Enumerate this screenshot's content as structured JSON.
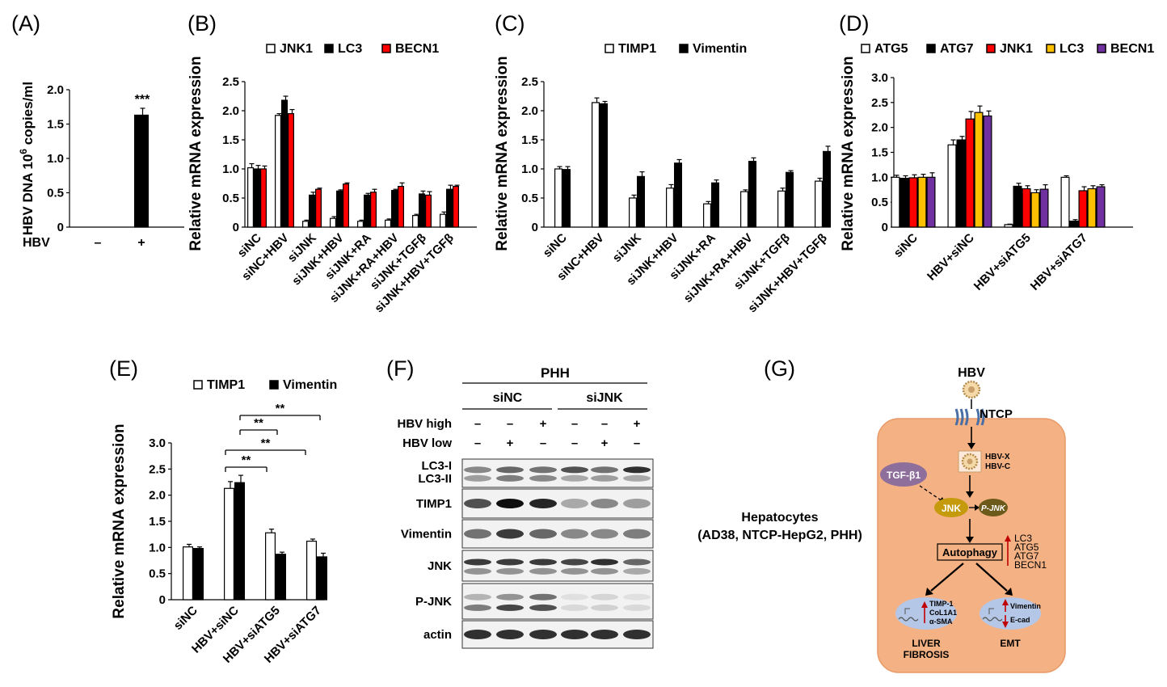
{
  "panel_labels": [
    "(A)",
    "(B)",
    "(C)",
    "(D)",
    "(E)",
    "(F)",
    "(G)"
  ],
  "colors": {
    "white": "#ffffff",
    "black": "#000000",
    "red": "#ff0000",
    "yellow": "#ffc000",
    "purple": "#7030a0",
    "cell": "#f4b183",
    "cell_border": "#e89a68",
    "tgf": "#8e6f9b",
    "jnk": "#c59a0c",
    "pjnk": "#6b5a1a",
    "nucleus": "#b4c7e7"
  },
  "chart_data": [
    {
      "id": "A",
      "type": "bar",
      "title": "",
      "ylabel": "HBV DNA 10^6 copies/ml",
      "ylim": [
        0,
        2.0
      ],
      "yticks": [
        "0",
        "0.5",
        "1.0",
        "1.5",
        "2.0"
      ],
      "row_label": "HBV",
      "categories": [
        "–",
        "+"
      ],
      "series": [
        {
          "name": "HBV DNA",
          "color": "black",
          "values": [
            0,
            1.63
          ],
          "errors": [
            0,
            0.1
          ]
        }
      ],
      "annotations": [
        "***"
      ]
    },
    {
      "id": "B",
      "type": "bar",
      "ylabel": "Relative mRNA expression",
      "ylim": [
        0,
        2.5
      ],
      "yticks": [
        "0",
        "0.5",
        "1.0",
        "1.5",
        "2.0",
        "2.5"
      ],
      "categories": [
        "siNC",
        "siNC+HBV",
        "siJNK",
        "siJNK+HBV",
        "siJNK+RA",
        "siJNK+RA+HBV",
        "siJNK+TGFβ",
        "siJNK+HBV+TGFβ"
      ],
      "series": [
        {
          "name": "JNK1",
          "color": "white",
          "values": [
            1.02,
            1.92,
            0.1,
            0.15,
            0.1,
            0.12,
            0.2,
            0.22
          ],
          "errors": [
            0.07,
            0.03,
            0.02,
            0.03,
            0.02,
            0.02,
            0.02,
            0.04
          ]
        },
        {
          "name": "LC3",
          "color": "black",
          "values": [
            1.0,
            2.18,
            0.55,
            0.62,
            0.55,
            0.63,
            0.57,
            0.65
          ],
          "errors": [
            0.06,
            0.07,
            0.05,
            0.02,
            0.03,
            0.02,
            0.05,
            0.07
          ]
        },
        {
          "name": "BECN1",
          "color": "red",
          "values": [
            1.0,
            1.95,
            0.65,
            0.74,
            0.6,
            0.7,
            0.55,
            0.7
          ],
          "errors": [
            0.05,
            0.07,
            0.02,
            0.02,
            0.05,
            0.06,
            0.06,
            0.02
          ]
        }
      ]
    },
    {
      "id": "C",
      "type": "bar",
      "ylabel": "Relative mRNA expression",
      "ylim": [
        0,
        2.5
      ],
      "yticks": [
        "0",
        "0.5",
        "1.0",
        "1.5",
        "2.0",
        "2.5"
      ],
      "categories": [
        "siNC",
        "siNC+HBV",
        "siJNK",
        "siJNK+HBV",
        "siJNK+RA",
        "siJNK+RA+HBV",
        "siJNK+TGFβ",
        "siJNK+HBV+TGFβ"
      ],
      "series": [
        {
          "name": "TIMP1",
          "color": "white",
          "values": [
            1.0,
            2.14,
            0.5,
            0.67,
            0.4,
            0.61,
            0.62,
            0.79
          ],
          "errors": [
            0.04,
            0.08,
            0.05,
            0.06,
            0.04,
            0.03,
            0.05,
            0.05
          ]
        },
        {
          "name": "Vimentin",
          "color": "black",
          "values": [
            0.99,
            2.12,
            0.87,
            1.1,
            0.76,
            1.13,
            0.94,
            1.3
          ],
          "errors": [
            0.05,
            0.04,
            0.08,
            0.06,
            0.05,
            0.06,
            0.03,
            0.09
          ]
        }
      ]
    },
    {
      "id": "D",
      "type": "bar",
      "ylabel": "Relative mRNA expression",
      "ylim": [
        0,
        3.0
      ],
      "yticks": [
        "0",
        "0.5",
        "1.0",
        "1.5",
        "2.0",
        "2.5",
        "3.0"
      ],
      "categories": [
        "siNC",
        "HBV+siNC",
        "HBV+siATG5",
        "HBV+siATG7"
      ],
      "series": [
        {
          "name": "ATG5",
          "color": "white",
          "values": [
            1.0,
            1.65,
            0.05,
            1.0
          ],
          "errors": [
            0.04,
            0.1,
            0.01,
            0.03
          ]
        },
        {
          "name": "ATG7",
          "color": "black",
          "values": [
            0.98,
            1.75,
            0.82,
            0.12
          ],
          "errors": [
            0.05,
            0.07,
            0.06,
            0.03
          ]
        },
        {
          "name": "JNK1",
          "color": "red",
          "values": [
            0.99,
            2.17,
            0.77,
            0.73
          ],
          "errors": [
            0.06,
            0.15,
            0.06,
            0.08
          ]
        },
        {
          "name": "LC3",
          "color": "yellow",
          "values": [
            1.0,
            2.3,
            0.69,
            0.77
          ],
          "errors": [
            0.06,
            0.13,
            0.06,
            0.06
          ]
        },
        {
          "name": "BECN1",
          "color": "purple",
          "values": [
            1.0,
            2.23,
            0.76,
            0.81
          ],
          "errors": [
            0.09,
            0.1,
            0.09,
            0.04
          ]
        }
      ]
    },
    {
      "id": "E",
      "type": "bar",
      "ylabel": "Relative mRNA expression",
      "ylim": [
        0,
        3.0
      ],
      "yticks": [
        "0",
        "0.5",
        "1.0",
        "1.5",
        "2.0",
        "2.5",
        "3.0"
      ],
      "categories": [
        "siNC",
        "HBV+siNC",
        "HBV+siATG5",
        "HBV+siATG7"
      ],
      "series": [
        {
          "name": "TIMP1",
          "color": "white",
          "values": [
            1.01,
            2.13,
            1.28,
            1.12
          ],
          "errors": [
            0.05,
            0.13,
            0.07,
            0.04
          ]
        },
        {
          "name": "Vimentin",
          "color": "black",
          "values": [
            0.98,
            2.24,
            0.87,
            0.82
          ],
          "errors": [
            0.03,
            0.14,
            0.04,
            0.07
          ]
        }
      ],
      "significance": [
        {
          "from": 1,
          "to": 2,
          "label": "**"
        },
        {
          "from": 1,
          "to": 3,
          "label": "**"
        },
        {
          "from": 1,
          "to": 2,
          "label": "**"
        },
        {
          "from": 1,
          "to": 3,
          "label": "**"
        }
      ]
    }
  ],
  "blot": {
    "title": "PHH",
    "group_labels": [
      "siNC",
      "siJNK"
    ],
    "condition_rows": [
      {
        "label": "HBV high",
        "values": [
          "–",
          "–",
          "+",
          "–",
          "–",
          "+"
        ]
      },
      {
        "label": "HBV low",
        "values": [
          "–",
          "+",
          "–",
          "–",
          "+",
          "–"
        ]
      }
    ],
    "rows": [
      {
        "label": "LC3-I",
        "label2": "LC3-II"
      },
      {
        "label": "TIMP1"
      },
      {
        "label": "Vimentin"
      },
      {
        "label": "JNK"
      },
      {
        "label": "P-JNK"
      },
      {
        "label": "actin"
      }
    ]
  },
  "diagram": {
    "hbv": "HBV",
    "ntcp": "NTCP",
    "hepatocytes_line1": "Hepatocytes",
    "hepatocytes_line2": "(AD38, NTCP-HepG2, PHH)",
    "hbvx": "HBV-X",
    "hbvc": "HBV-C",
    "tgf": "TGF-β1",
    "jnk": "JNK",
    "pjnk": "P-JNK",
    "autophagy": "Autophagy",
    "autophagy_genes": [
      "LC3",
      "ATG5",
      "ATG7",
      "BECN1"
    ],
    "fibrosis_genes": [
      "TIMP-1",
      "CoL1A1",
      "α-SMA"
    ],
    "emt_genes": [
      "Vimentin",
      "E-cad"
    ],
    "fibrosis_line1": "LIVER",
    "fibrosis_line2": "FIBROSIS",
    "emt": "EMT"
  }
}
